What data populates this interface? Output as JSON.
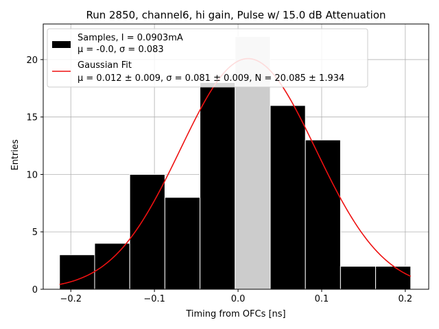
{
  "chart_data": {
    "type": "bar",
    "title": "Run 2850, channel6, hi gain, Pulse w/ 15.0 dB Attenuation",
    "xlabel": "Timing from OFCs [ns]",
    "ylabel": "Entries",
    "xlim": [
      -0.233,
      0.228
    ],
    "ylim": [
      0,
      23.1
    ],
    "xticks": [
      -0.2,
      -0.1,
      0.0,
      0.1,
      0.2
    ],
    "xtick_labels": [
      "−0.2",
      "−0.1",
      "0.0",
      "0.1",
      "0.2"
    ],
    "yticks": [
      0,
      5,
      10,
      15,
      20
    ],
    "ytick_labels": [
      "0",
      "5",
      "10",
      "15",
      "20"
    ],
    "grid": true,
    "bin_edges": [
      -0.2135,
      -0.1715,
      -0.1295,
      -0.0875,
      -0.0455,
      -0.0035,
      0.0385,
      0.0805,
      0.1225,
      0.1645,
      0.2065
    ],
    "counts": [
      3,
      4,
      10,
      8,
      18,
      22,
      16,
      13,
      2,
      2
    ],
    "highlight_bin": 5,
    "highlight_color": "#cccccc",
    "bar_color": "#000000",
    "fit": {
      "mu": 0.012,
      "sigma": 0.081,
      "N": 20.085,
      "color": "#ee1111",
      "x_range": [
        -0.2135,
        0.2065
      ]
    },
    "legend": {
      "position": "top-left",
      "samples_line1": "Samples, I = 0.0903mA",
      "samples_line2": "μ = -0.0, σ = 0.083",
      "fit_line1": "Gaussian Fit",
      "fit_line2": "μ = 0.012 ± 0.009, σ = 0.081 ± 0.009, N = 20.085 ± 1.934"
    }
  }
}
